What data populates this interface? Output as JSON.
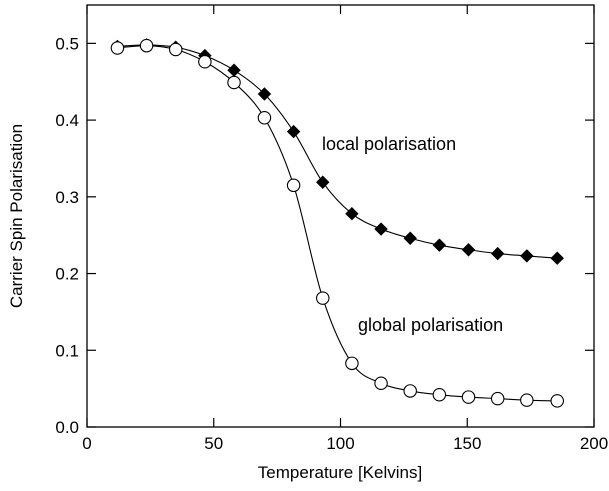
{
  "chart_data": {
    "type": "line",
    "title": "",
    "xlabel": "Temperature [Kelvins]",
    "ylabel": "Carrier Spin Polarisation",
    "xlim": [
      0,
      200
    ],
    "ylim": [
      0.0,
      0.55
    ],
    "xticks": [
      0,
      50,
      100,
      150,
      200
    ],
    "yticks": [
      0.0,
      0.1,
      0.2,
      0.3,
      0.4,
      0.5
    ],
    "xtick_labels": [
      "0",
      "50",
      "100",
      "150",
      "200"
    ],
    "ytick_labels": [
      "0.0",
      "0.1",
      "0.2",
      "0.3",
      "0.4",
      "0.5"
    ],
    "grid": false,
    "legend": "none",
    "x": [
      12,
      23.5,
      35,
      46.5,
      58,
      70,
      81.5,
      93,
      104.5,
      116,
      127.5,
      139,
      150.5,
      162,
      173.5,
      185.5
    ],
    "series": [
      {
        "name": "local polarisation",
        "marker": "filled-diamond",
        "values": [
          0.496,
          0.498,
          0.495,
          0.484,
          0.465,
          0.434,
          0.385,
          0.319,
          0.278,
          0.258,
          0.246,
          0.237,
          0.231,
          0.226,
          0.223,
          0.22
        ]
      },
      {
        "name": "global polarisation",
        "marker": "open-circle",
        "values": [
          0.494,
          0.497,
          0.492,
          0.476,
          0.449,
          0.403,
          0.315,
          0.168,
          0.083,
          0.057,
          0.047,
          0.042,
          0.039,
          0.037,
          0.035,
          0.034
        ]
      }
    ],
    "annotations": [
      {
        "text": "local polarisation",
        "series": 0
      },
      {
        "text": "global polarisation",
        "series": 1
      }
    ]
  }
}
